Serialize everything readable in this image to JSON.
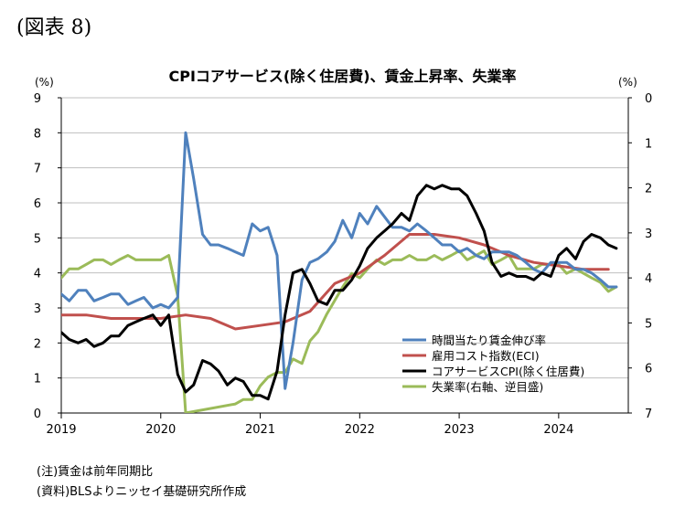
{
  "figure_label": "(図表 8)",
  "notes": {
    "note1": "(注)賃金は前年同期比",
    "note2": "(資料)BLSよりニッセイ基礎研究所作成"
  },
  "chart_data": {
    "type": "line",
    "title": "CPIコアサービス(除く住居費)、賃金上昇率、失業率",
    "left_unit": "(%)",
    "right_unit": "(%)",
    "ylim_left": [
      0,
      9
    ],
    "ylim_right_inverted": [
      0,
      7
    ],
    "y_ticks_left": [
      "0",
      "1",
      "2",
      "3",
      "4",
      "5",
      "6",
      "7",
      "8",
      "9"
    ],
    "y_ticks_right": [
      "0",
      "1",
      "2",
      "3",
      "4",
      "5",
      "6",
      "7"
    ],
    "xlim": [
      2019.0,
      2024.7
    ],
    "x_ticks": [
      "2019",
      "2020",
      "2021",
      "2022",
      "2023",
      "2024"
    ],
    "grid": "horizontal",
    "legend_position": "right-bottom",
    "colors": {
      "wage": "#4f81bd",
      "eci": "#c0504d",
      "cpi": "#000000",
      "unemp": "#9bbb59"
    },
    "series": [
      {
        "name": "時間当たり賃金伸び率",
        "axis": "left",
        "color": "#4f81bd",
        "x": [
          2019.0,
          2019.08,
          2019.17,
          2019.25,
          2019.33,
          2019.42,
          2019.5,
          2019.58,
          2019.67,
          2019.75,
          2019.83,
          2019.92,
          2020.0,
          2020.08,
          2020.17,
          2020.25,
          2020.33,
          2020.42,
          2020.5,
          2020.58,
          2020.67,
          2020.75,
          2020.83,
          2020.92,
          2021.0,
          2021.08,
          2021.17,
          2021.25,
          2021.33,
          2021.42,
          2021.5,
          2021.58,
          2021.67,
          2021.75,
          2021.83,
          2021.92,
          2022.0,
          2022.08,
          2022.17,
          2022.25,
          2022.33,
          2022.42,
          2022.5,
          2022.58,
          2022.67,
          2022.75,
          2022.83,
          2022.92,
          2023.0,
          2023.08,
          2023.17,
          2023.25,
          2023.33,
          2023.42,
          2023.5,
          2023.58,
          2023.67,
          2023.75,
          2023.83,
          2023.92,
          2024.0,
          2024.08,
          2024.17,
          2024.25,
          2024.33,
          2024.42,
          2024.5,
          2024.58
        ],
        "y": [
          3.4,
          3.2,
          3.5,
          3.5,
          3.2,
          3.3,
          3.4,
          3.4,
          3.1,
          3.2,
          3.3,
          3.0,
          3.1,
          3.0,
          3.3,
          8.0,
          6.7,
          5.1,
          4.8,
          4.8,
          4.7,
          4.6,
          4.5,
          5.4,
          5.2,
          5.3,
          4.5,
          0.7,
          2.0,
          3.8,
          4.3,
          4.4,
          4.6,
          4.9,
          5.5,
          5.0,
          5.7,
          5.4,
          5.9,
          5.6,
          5.3,
          5.3,
          5.2,
          5.4,
          5.2,
          5.0,
          4.8,
          4.8,
          4.6,
          4.7,
          4.5,
          4.4,
          4.6,
          4.6,
          4.6,
          4.5,
          4.3,
          4.1,
          4.0,
          4.3,
          4.3,
          4.3,
          4.1,
          4.1,
          4.0,
          3.8,
          3.6,
          3.6
        ]
      },
      {
        "name": "雇用コスト指数(ECI)",
        "axis": "left",
        "color": "#c0504d",
        "x": [
          2019.0,
          2019.25,
          2019.5,
          2019.75,
          2020.0,
          2020.25,
          2020.5,
          2020.75,
          2021.0,
          2021.25,
          2021.5,
          2021.75,
          2022.0,
          2022.25,
          2022.5,
          2022.75,
          2023.0,
          2023.25,
          2023.5,
          2023.75,
          2024.0,
          2024.25,
          2024.5
        ],
        "y": [
          2.8,
          2.8,
          2.7,
          2.7,
          2.7,
          2.8,
          2.7,
          2.4,
          2.5,
          2.6,
          2.9,
          3.7,
          4.0,
          4.5,
          5.1,
          5.1,
          5.0,
          4.8,
          4.5,
          4.3,
          4.2,
          4.1,
          4.1
        ]
      },
      {
        "name": "コアサービスCPI(除く住居費)",
        "axis": "left",
        "color": "#000000",
        "x": [
          2019.0,
          2019.08,
          2019.17,
          2019.25,
          2019.33,
          2019.42,
          2019.5,
          2019.58,
          2019.67,
          2019.75,
          2019.83,
          2019.92,
          2020.0,
          2020.08,
          2020.17,
          2020.25,
          2020.33,
          2020.42,
          2020.5,
          2020.58,
          2020.67,
          2020.75,
          2020.83,
          2020.92,
          2021.0,
          2021.08,
          2021.17,
          2021.25,
          2021.33,
          2021.42,
          2021.5,
          2021.58,
          2021.67,
          2021.75,
          2021.83,
          2021.92,
          2022.0,
          2022.08,
          2022.17,
          2022.25,
          2022.33,
          2022.42,
          2022.5,
          2022.58,
          2022.67,
          2022.75,
          2022.83,
          2022.92,
          2023.0,
          2023.08,
          2023.17,
          2023.25,
          2023.33,
          2023.42,
          2023.5,
          2023.58,
          2023.67,
          2023.75,
          2023.83,
          2023.92,
          2024.0,
          2024.08,
          2024.17,
          2024.25,
          2024.33,
          2024.42,
          2024.5,
          2024.58
        ],
        "y": [
          2.3,
          2.1,
          2.0,
          2.1,
          1.9,
          2.0,
          2.2,
          2.2,
          2.5,
          2.6,
          2.7,
          2.8,
          2.5,
          2.8,
          1.1,
          0.6,
          0.8,
          1.5,
          1.4,
          1.2,
          0.8,
          1.0,
          0.9,
          0.5,
          0.5,
          0.4,
          1.2,
          2.8,
          4.0,
          4.1,
          3.7,
          3.2,
          3.1,
          3.5,
          3.5,
          3.8,
          4.2,
          4.7,
          5.0,
          5.2,
          5.4,
          5.7,
          5.5,
          6.2,
          6.5,
          6.4,
          6.5,
          6.4,
          6.4,
          6.2,
          5.7,
          5.2,
          4.3,
          3.9,
          4.0,
          3.9,
          3.9,
          3.8,
          4.0,
          3.9,
          4.5,
          4.7,
          4.4,
          4.9,
          5.1,
          5.0,
          4.8,
          4.7
        ]
      },
      {
        "name": "失業率(右軸、逆目盛)",
        "axis": "right_inverted",
        "color": "#9bbb59",
        "x": [
          2019.0,
          2019.08,
          2019.17,
          2019.25,
          2019.33,
          2019.42,
          2019.5,
          2019.58,
          2019.67,
          2019.75,
          2019.83,
          2019.92,
          2020.0,
          2020.08,
          2020.17,
          2020.25,
          2020.75,
          2020.83,
          2020.92,
          2021.0,
          2021.08,
          2021.17,
          2021.25,
          2021.33,
          2021.42,
          2021.5,
          2021.58,
          2021.67,
          2021.75,
          2021.83,
          2021.92,
          2022.0,
          2022.08,
          2022.17,
          2022.25,
          2022.33,
          2022.42,
          2022.5,
          2022.58,
          2022.67,
          2022.75,
          2022.83,
          2022.92,
          2023.0,
          2023.08,
          2023.17,
          2023.25,
          2023.33,
          2023.42,
          2023.5,
          2023.58,
          2023.67,
          2023.75,
          2023.83,
          2023.92,
          2024.0,
          2024.08,
          2024.17,
          2024.25,
          2024.33,
          2024.42,
          2024.5,
          2024.58
        ],
        "y": [
          4.0,
          3.8,
          3.8,
          3.7,
          3.6,
          3.6,
          3.7,
          3.6,
          3.5,
          3.6,
          3.6,
          3.6,
          3.6,
          3.5,
          4.4,
          7.0,
          6.8,
          6.7,
          6.7,
          6.4,
          6.2,
          6.1,
          6.1,
          5.8,
          5.9,
          5.4,
          5.2,
          4.8,
          4.5,
          4.2,
          3.9,
          4.0,
          3.8,
          3.6,
          3.7,
          3.6,
          3.6,
          3.5,
          3.6,
          3.6,
          3.5,
          3.6,
          3.5,
          3.4,
          3.6,
          3.5,
          3.4,
          3.7,
          3.6,
          3.5,
          3.8,
          3.8,
          3.8,
          3.7,
          3.7,
          3.7,
          3.9,
          3.8,
          3.9,
          4.0,
          4.1,
          4.3,
          4.2
        ]
      }
    ]
  }
}
